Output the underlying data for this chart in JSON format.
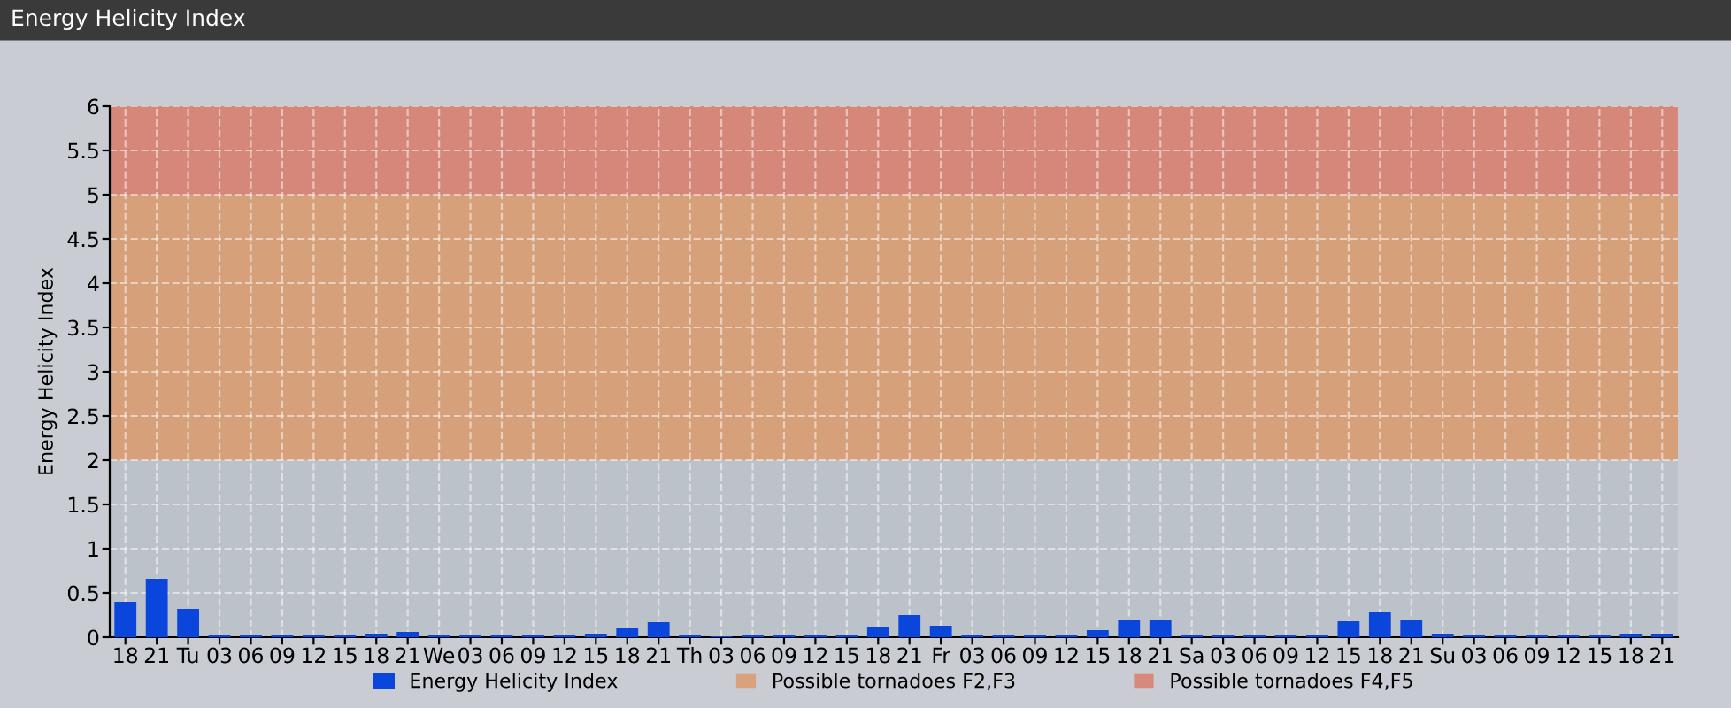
{
  "chart_data": {
    "type": "bar",
    "title": "Energy Helicity Index",
    "ylabel": "Energy Helicity Index",
    "categories": [
      "18",
      "21",
      "Tu",
      "03",
      "06",
      "09",
      "12",
      "15",
      "18",
      "21",
      "We",
      "03",
      "06",
      "09",
      "12",
      "15",
      "18",
      "21",
      "Th",
      "03",
      "06",
      "09",
      "12",
      "15",
      "18",
      "21",
      "Fr",
      "03",
      "06",
      "09",
      "12",
      "15",
      "18",
      "21",
      "Sa",
      "03",
      "06",
      "09",
      "12",
      "15",
      "18",
      "21",
      "Su",
      "03",
      "06",
      "09",
      "12",
      "15",
      "18",
      "21"
    ],
    "series": [
      {
        "name": "Energy Helicity Index",
        "color": "#0a45dc",
        "values": [
          0.4,
          0.66,
          0.32,
          0.02,
          0.02,
          0.02,
          0.02,
          0.02,
          0.04,
          0.06,
          0.02,
          0.02,
          0.02,
          0.02,
          0.02,
          0.04,
          0.1,
          0.17,
          0.02,
          0.01,
          0.02,
          0.02,
          0.02,
          0.03,
          0.12,
          0.25,
          0.13,
          0.02,
          0.02,
          0.03,
          0.03,
          0.08,
          0.2,
          0.2,
          0.02,
          0.03,
          0.02,
          0.02,
          0.02,
          0.18,
          0.28,
          0.2,
          0.04,
          0.02,
          0.02,
          0.02,
          0.02,
          0.02,
          0.04,
          0.04
        ]
      }
    ],
    "ylim": [
      0,
      6
    ],
    "yticks": [
      0,
      0.5,
      1,
      1.5,
      2,
      2.5,
      3,
      3.5,
      4,
      4.5,
      5,
      5.5,
      6
    ],
    "bands": [
      {
        "axis": "y",
        "from": 2,
        "to": 5,
        "label": "Possible tornadoes F2,F3",
        "color": "#d99a6c"
      },
      {
        "axis": "y",
        "from": 5,
        "to": 6,
        "label": "Possible tornadoes F4,F5",
        "color": "#d97c6c"
      }
    ],
    "grid": true,
    "legend": "bottom"
  }
}
